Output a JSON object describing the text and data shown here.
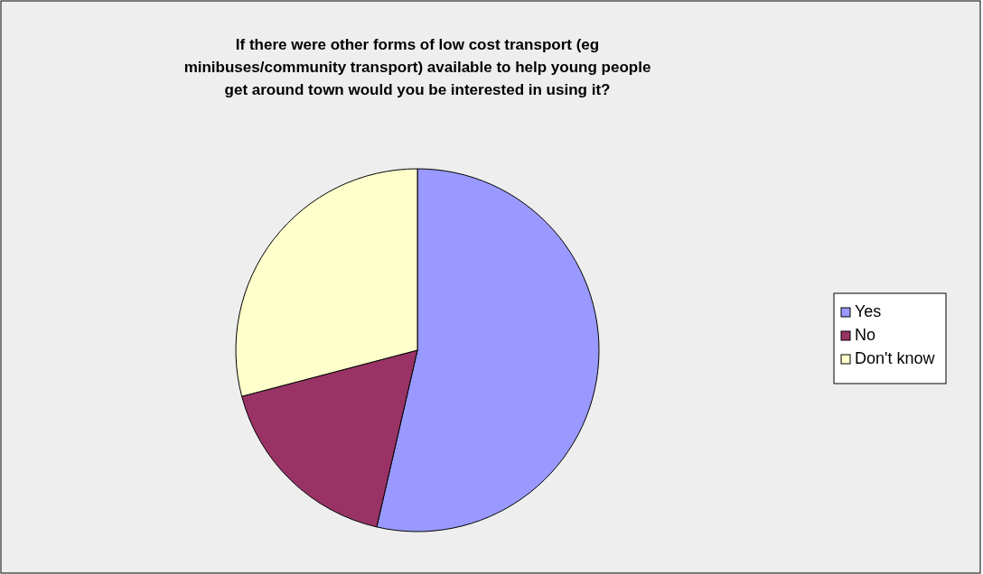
{
  "chart_data": {
    "type": "pie",
    "title": "If there were other forms of low cost transport (eg minibuses/community transport) available to help young people get around town would you be interested in using it?",
    "categories": [
      "Yes",
      "No",
      "Don't know"
    ],
    "values": [
      53.6,
      17.3,
      29.1
    ],
    "colors": [
      "#9999ff",
      "#993366",
      "#ffffcc"
    ],
    "legend": "right"
  }
}
